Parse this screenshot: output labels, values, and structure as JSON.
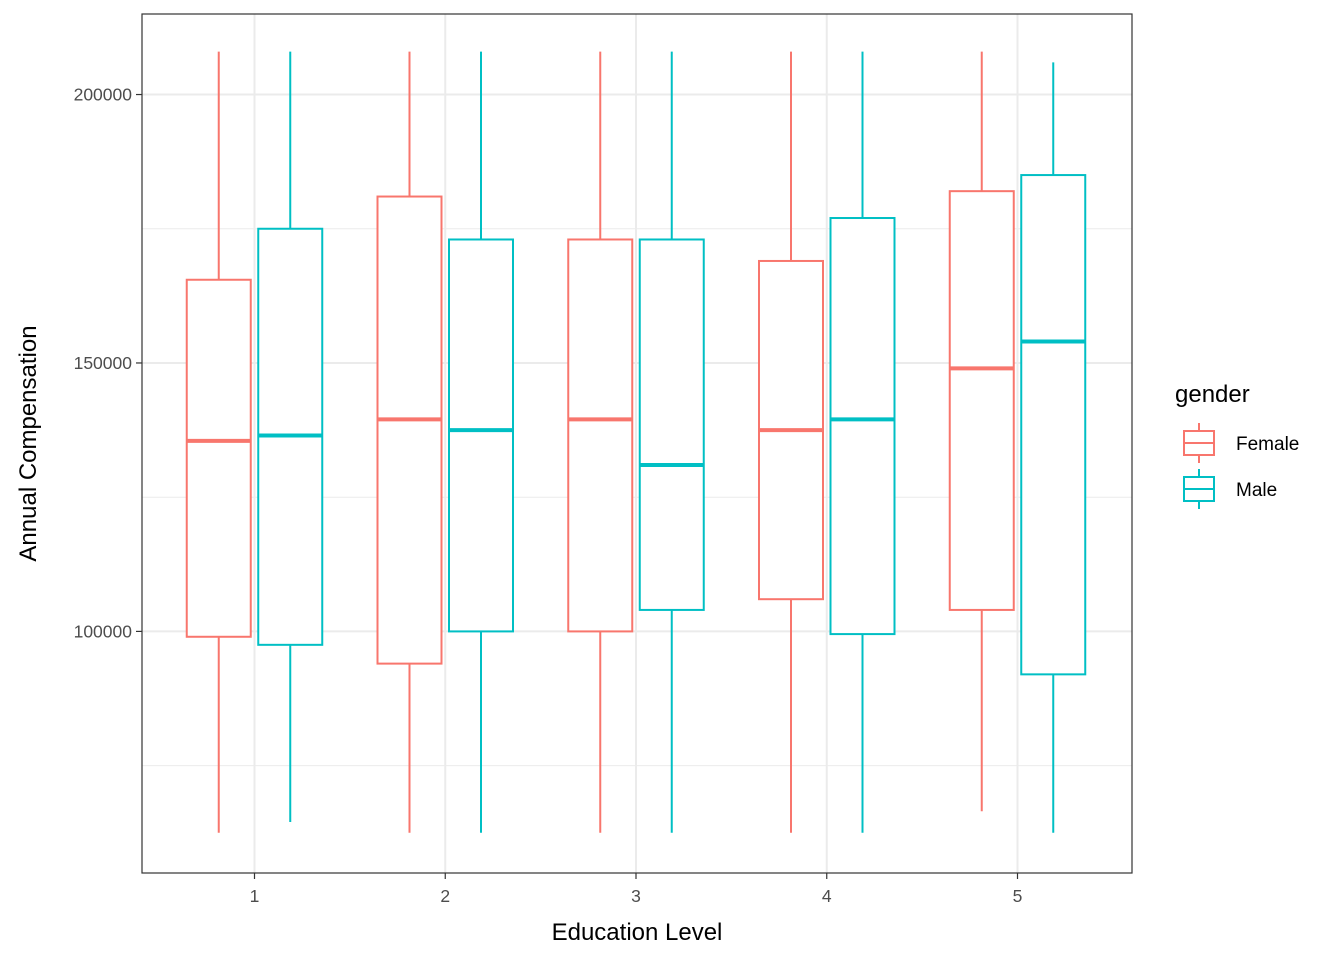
{
  "chart_data": {
    "type": "boxplot",
    "xlabel": "Education Level",
    "ylabel": "Annual Compensation",
    "categories": [
      "1",
      "2",
      "3",
      "4",
      "5"
    ],
    "ylim": [
      55000,
      215000
    ],
    "yticks": [
      100000,
      150000,
      200000
    ],
    "ytick_labels": [
      "100000",
      "150000",
      "200000"
    ],
    "grid": true,
    "legend": {
      "title": "gender",
      "position": "right"
    },
    "series": [
      {
        "name": "Female",
        "color": "#F8766D",
        "boxes": [
          {
            "category": "1",
            "min": 62500,
            "q1": 99000,
            "median": 135500,
            "q3": 165500,
            "max": 208000
          },
          {
            "category": "2",
            "min": 62500,
            "q1": 94000,
            "median": 139500,
            "q3": 181000,
            "max": 208000
          },
          {
            "category": "3",
            "min": 62500,
            "q1": 100000,
            "median": 139500,
            "q3": 173000,
            "max": 208000
          },
          {
            "category": "4",
            "min": 62500,
            "q1": 106000,
            "median": 137500,
            "q3": 169000,
            "max": 208000
          },
          {
            "category": "5",
            "min": 66500,
            "q1": 104000,
            "median": 149000,
            "q3": 182000,
            "max": 208000
          }
        ]
      },
      {
        "name": "Male",
        "color": "#00BFC4",
        "boxes": [
          {
            "category": "1",
            "min": 64500,
            "q1": 97500,
            "median": 136500,
            "q3": 175000,
            "max": 208000
          },
          {
            "category": "2",
            "min": 62500,
            "q1": 100000,
            "median": 137500,
            "q3": 173000,
            "max": 208000
          },
          {
            "category": "3",
            "min": 62500,
            "q1": 104000,
            "median": 131000,
            "q3": 173000,
            "max": 208000
          },
          {
            "category": "4",
            "min": 62500,
            "q1": 99500,
            "median": 139500,
            "q3": 177000,
            "max": 208000
          },
          {
            "category": "5",
            "min": 62500,
            "q1": 92000,
            "median": 154000,
            "q3": 185000,
            "max": 206000
          }
        ]
      }
    ]
  }
}
